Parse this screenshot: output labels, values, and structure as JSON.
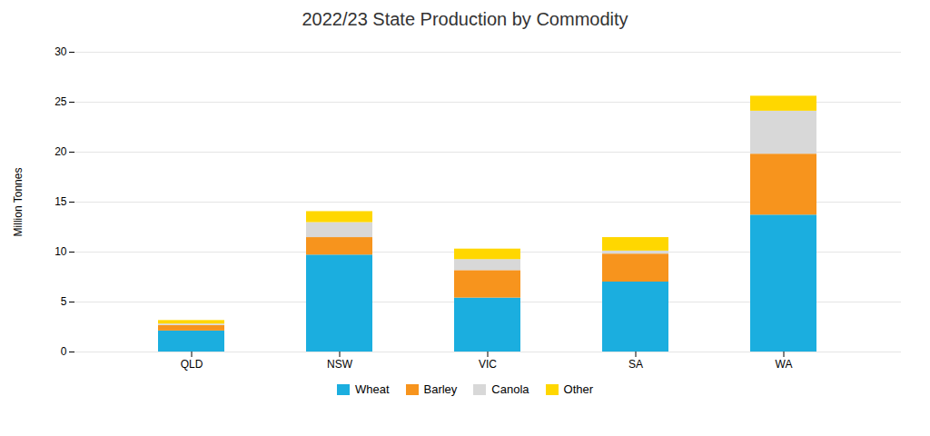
{
  "chart_data": {
    "type": "bar",
    "stacked": true,
    "title": "2022/23 State Production by Commodity",
    "ylabel": "Million Tonnes",
    "categories": [
      "QLD",
      "NSW",
      "VIC",
      "SA",
      "WA"
    ],
    "series": [
      {
        "name": "Wheat",
        "color": "#1BAEDF",
        "values": [
          2.1,
          9.7,
          5.4,
          7.0,
          13.7
        ]
      },
      {
        "name": "Barley",
        "color": "#F7941D",
        "values": [
          0.55,
          1.75,
          2.75,
          2.8,
          6.1
        ]
      },
      {
        "name": "Canola",
        "color": "#D8D8D8",
        "values": [
          0.15,
          1.5,
          1.1,
          0.3,
          4.3
        ]
      },
      {
        "name": "Other",
        "color": "#FFD700",
        "values": [
          0.35,
          1.1,
          1.05,
          1.35,
          1.5
        ]
      }
    ],
    "ylim": [
      0,
      30
    ],
    "yticks": [
      0,
      5,
      10,
      15,
      20,
      25,
      30
    ],
    "grid": true,
    "legend": "bottom"
  }
}
